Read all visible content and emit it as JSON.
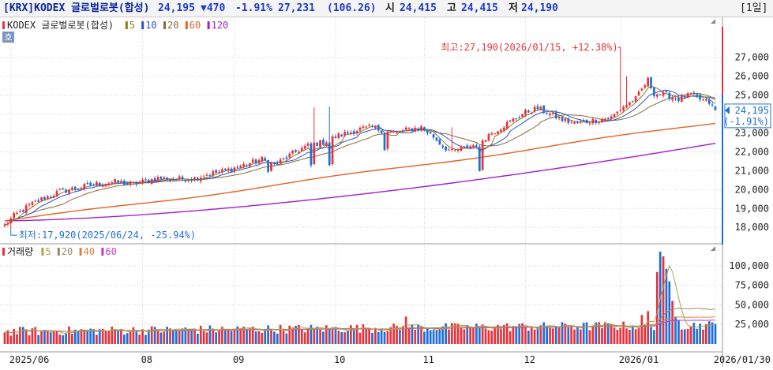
{
  "header": {
    "code": "[KRX]KODEX 글로벌로봇(합성)",
    "price": "24,195",
    "change": "▼470",
    "change_pct": "-1.91%",
    "high_price": "27,231",
    "ratio": "(106.26)",
    "open_label": "시",
    "open": "24,415",
    "high_label": "고",
    "high": "24,415",
    "low_label": "저",
    "low": "24,190",
    "period": "[1일]"
  },
  "colors": {
    "up": "#e8323c",
    "down": "#1f6fd6",
    "ma5": "#8a7a1e",
    "ma10": "#2a52c8",
    "ma20": "#8c6a3a",
    "ma60": "#e06428",
    "ma120": "#a020d0",
    "vol_ma5": "#b0a050",
    "vol_ma20": "#9a8a6a",
    "vol_ma40": "#e08040",
    "vol_ma60": "#c040c0"
  },
  "chart_data": [
    {
      "type": "candlestick",
      "legend": {
        "name": "KODEX 글로벌로봇(합성)",
        "ma": [
          "5",
          "10",
          "20",
          "60",
          "120"
        ]
      },
      "badge": "호",
      "ylim": [
        17300,
        28700
      ],
      "yticks": [
        "27,000",
        "26,000",
        "25,000",
        "24,000",
        "23,000",
        "22,000",
        "21,000",
        "20,000",
        "19,000",
        "18,000"
      ],
      "ytick_values": [
        27000,
        26000,
        25000,
        24000,
        23000,
        22000,
        21000,
        20000,
        19000,
        18000
      ],
      "current_price_label": "24,195",
      "current_pct_label": "(-1.91%)",
      "current_value": 24195,
      "high_annotation": "최고:27,190(2026/01/15, +12.38%)",
      "high_value": 27190,
      "low_annotation": "최저:17,920(2025/06/24, -25.94%)",
      "low_value": 17920,
      "anchors": [
        [
          0,
          18100
        ],
        [
          3,
          18600
        ],
        [
          8,
          19150
        ],
        [
          12,
          19500
        ],
        [
          18,
          19900
        ],
        [
          24,
          20100
        ],
        [
          30,
          20300
        ],
        [
          36,
          20400
        ],
        [
          42,
          20300
        ],
        [
          50,
          20600
        ],
        [
          56,
          20550
        ],
        [
          62,
          20600
        ],
        [
          66,
          20800
        ],
        [
          72,
          21000
        ],
        [
          78,
          21300
        ],
        [
          84,
          21600
        ],
        [
          88,
          21300
        ],
        [
          92,
          21700
        ],
        [
          96,
          22100
        ],
        [
          100,
          22400
        ],
        [
          104,
          22500
        ],
        [
          108,
          22800
        ],
        [
          112,
          23000
        ],
        [
          116,
          23200
        ],
        [
          120,
          23300
        ],
        [
          124,
          23100
        ],
        [
          128,
          23000
        ],
        [
          132,
          23200
        ],
        [
          136,
          23300
        ],
        [
          140,
          22800
        ],
        [
          143,
          22300
        ],
        [
          146,
          22000
        ],
        [
          150,
          22200
        ],
        [
          154,
          22400
        ],
        [
          158,
          22900
        ],
        [
          162,
          23300
        ],
        [
          166,
          23700
        ],
        [
          170,
          24100
        ],
        [
          174,
          24300
        ],
        [
          178,
          24000
        ],
        [
          182,
          23700
        ],
        [
          186,
          23500
        ],
        [
          190,
          23600
        ],
        [
          194,
          23700
        ],
        [
          198,
          23800
        ],
        [
          202,
          24400
        ],
        [
          206,
          24800
        ],
        [
          208,
          25300
        ],
        [
          210,
          25800
        ],
        [
          212,
          25100
        ],
        [
          216,
          25000
        ],
        [
          220,
          24800
        ],
        [
          224,
          25000
        ],
        [
          228,
          24700
        ],
        [
          230,
          24600
        ],
        [
          232,
          24200
        ]
      ],
      "big_moves": [
        [
          86,
          85,
          -620
        ],
        [
          100,
          99,
          -1150
        ],
        [
          106,
          105,
          -1200
        ],
        [
          124,
          123,
          -900
        ],
        [
          155,
          154,
          -1300
        ]
      ],
      "wick_spikes": [
        [
          101,
          24350
        ],
        [
          106,
          24400
        ],
        [
          146,
          23300
        ],
        [
          201,
          27300
        ],
        [
          203,
          26000
        ],
        [
          208,
          25400
        ]
      ]
    },
    {
      "type": "bar",
      "series_role": "volume",
      "legend": {
        "name": "거래량",
        "ma": [
          "5",
          "20",
          "40",
          "60"
        ]
      },
      "ylim": [
        0,
        123000
      ],
      "yticks": [
        "100,000",
        "75,000",
        "50,000",
        "25,000"
      ],
      "ytick_values": [
        100000,
        75000,
        50000,
        25000
      ],
      "base_volume": 16000,
      "spikes": [
        [
          131,
          35000
        ],
        [
          208,
          37000
        ],
        [
          210,
          42000
        ],
        [
          213,
          92000
        ],
        [
          214,
          118000
        ],
        [
          215,
          112000
        ],
        [
          216,
          96000
        ],
        [
          217,
          80000
        ],
        [
          218,
          55000
        ],
        [
          219,
          35000
        ],
        [
          220,
          30000
        ]
      ]
    }
  ],
  "xaxis": {
    "labels": [
      {
        "text": "2025/06",
        "index": 2
      },
      {
        "text": "08",
        "index": 45
      },
      {
        "text": "09",
        "index": 75
      },
      {
        "text": "10",
        "index": 108
      },
      {
        "text": "11",
        "index": 137
      },
      {
        "text": "12",
        "index": 170
      },
      {
        "text": "2026/01",
        "index": 201
      },
      {
        "text": "2026/01/30",
        "index": 232
      }
    ]
  }
}
